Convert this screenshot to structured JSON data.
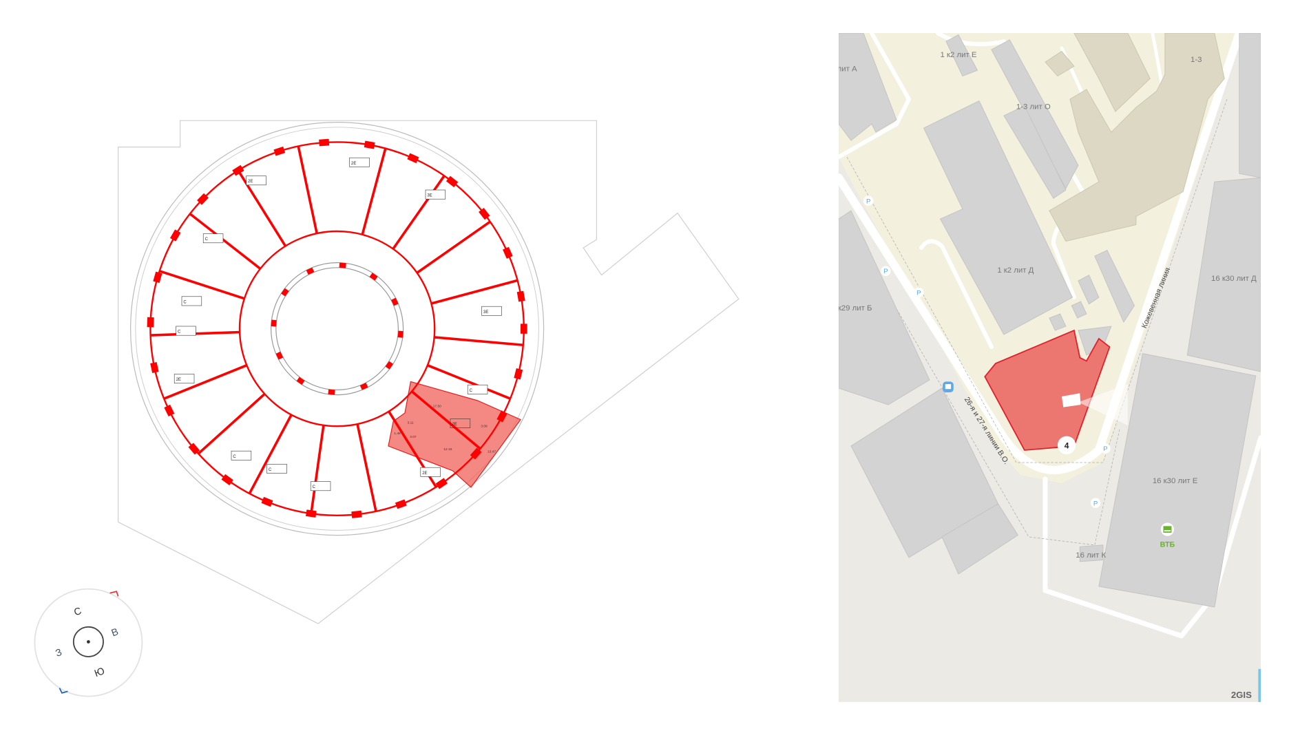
{
  "floor_plan": {
    "highlight_color": "#f0574f",
    "wall_color": "#ff0000",
    "selected_apartment": {
      "type": "2Е",
      "room_areas": [
        "17.50",
        "12.15",
        "13.47",
        "3.09",
        "3.11",
        "1.48",
        "3.07"
      ]
    },
    "apartment_types": [
      "2Е",
      "2Е",
      "2Е",
      "2Е",
      "3Е",
      "3Е",
      "С",
      "С",
      "С",
      "С",
      "С",
      "С",
      "С"
    ]
  },
  "compass": {
    "north": "С",
    "west": "З",
    "east": "В",
    "south": "Ю",
    "north_marker_color": "#e53935",
    "south_marker_color": "#1e63c8"
  },
  "map": {
    "labels": {
      "lit_a": "лит А",
      "k2_lit_e": "1 к2 лит Е",
      "b13": "1-3",
      "b13_lit_o": "1-3 лит О",
      "k2_lit_d": "1 к2 лит Д",
      "k30_lit_d": "16 к30 лит Д",
      "k29_lit_b": "к29 лит Б",
      "k30_lit_e": "16 к30 лит Е",
      "lit_k": "16 лит К"
    },
    "streets": {
      "kozhevennaya": "Кожевенная линия",
      "lines_26_27": "26-я и 27-я линии В.О."
    },
    "marker_number": "4",
    "bank_label": "ВТБ",
    "parking_label": "P",
    "logo": "2GIS",
    "highlight_color": "#ec7770",
    "bank_color": "#6ab42d"
  }
}
